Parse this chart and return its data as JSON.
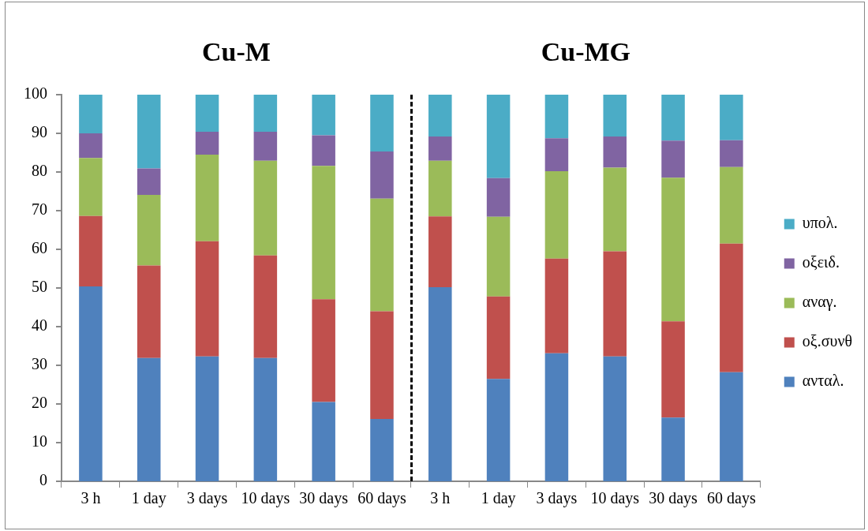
{
  "chart_data": {
    "type": "bar",
    "stacked": true,
    "categories": [
      "3 h",
      "1 day",
      "3 days",
      "10 days",
      "30 days",
      "60 days",
      "3 h",
      "1 day",
      "3 days",
      "10 days",
      "30 days",
      "60 days"
    ],
    "series": [
      {
        "name": "ανταλ.",
        "color": "#4f81bd",
        "values": [
          50.4,
          31.9,
          32.3,
          31.9,
          20.5,
          16.1,
          50.2,
          26.5,
          33.1,
          32.3,
          16.5,
          28.2
        ]
      },
      {
        "name": "οξ.συνθ",
        "color": "#c0504d",
        "values": [
          18.2,
          23.9,
          29.8,
          26.5,
          26.6,
          27.9,
          18.3,
          21.3,
          24.5,
          27.2,
          24.9,
          33.3
        ]
      },
      {
        "name": "αναγ.",
        "color": "#9bbb59",
        "values": [
          15.0,
          18.3,
          22.4,
          24.5,
          34.5,
          29.1,
          14.4,
          20.6,
          22.6,
          21.6,
          37.1,
          19.8
        ]
      },
      {
        "name": "οξειδ.",
        "color": "#8064a2",
        "values": [
          6.4,
          6.8,
          5.9,
          7.5,
          7.9,
          12.2,
          6.3,
          10.0,
          8.5,
          8.1,
          9.6,
          6.9
        ]
      },
      {
        "name": "υπολ.",
        "color": "#4bacc6",
        "values": [
          10.0,
          19.1,
          9.6,
          9.6,
          10.5,
          14.7,
          10.8,
          21.6,
          11.3,
          10.8,
          11.9,
          11.8
        ]
      }
    ],
    "ylim": [
      0,
      100
    ],
    "yticks": [
      0,
      10,
      20,
      30,
      40,
      50,
      60,
      70,
      80,
      90,
      100
    ],
    "annotations": [
      "Cu-M",
      "Cu-MG"
    ],
    "legend": "right"
  }
}
